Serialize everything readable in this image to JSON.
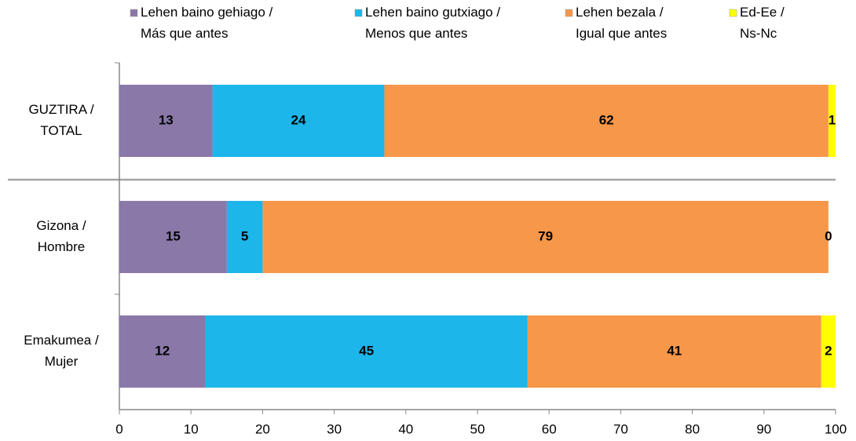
{
  "chart_data": {
    "type": "stacked_barh",
    "categories": [
      "GUZTIRA / TOTAL",
      "Gizona / Hombre",
      "Emakumea / Mujer"
    ],
    "series": [
      {
        "name": "Lehen baino gehiago / Más que antes",
        "color": "#8a78a8",
        "values": [
          13,
          15,
          12
        ]
      },
      {
        "name": "Lehen baino gutxiago / Menos que antes",
        "color": "#1cb6ea",
        "values": [
          24,
          5,
          45
        ]
      },
      {
        "name": "Lehen bezala / Igual que antes",
        "color": "#f7974a",
        "values": [
          62,
          79,
          41
        ]
      },
      {
        "name": "Ed-Ee / Ns-Nc",
        "color": "#ffff00",
        "values": [
          1,
          0,
          2
        ]
      }
    ],
    "xlim": [
      0,
      100
    ],
    "xticks": [
      0,
      10,
      20,
      30,
      40,
      50,
      60,
      70,
      80,
      90,
      100
    ]
  }
}
